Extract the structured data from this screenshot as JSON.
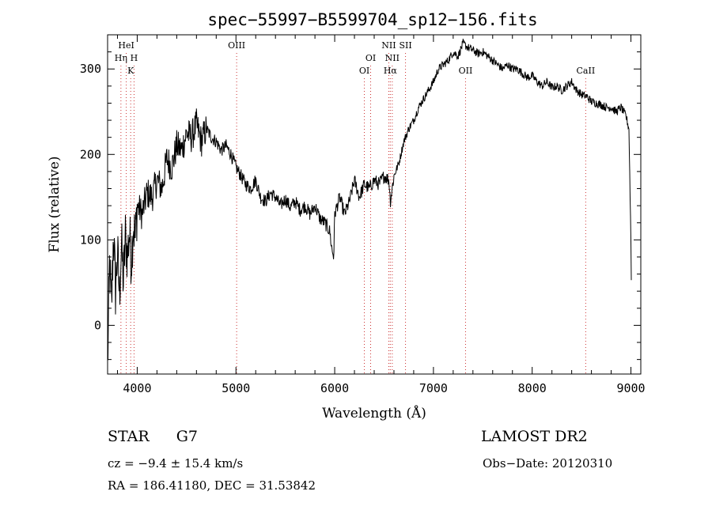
{
  "chart_data": {
    "type": "line",
    "title": "spec−55997−B5599704_sp12−156.fits",
    "xlabel": "Wavelength (Å)",
    "ylabel": "Flux (relative)",
    "xlim": [
      3700,
      9100
    ],
    "ylim": [
      -57,
      340
    ],
    "x_ticks": [
      4000,
      5000,
      6000,
      7000,
      8000,
      9000
    ],
    "y_ticks": [
      0,
      100,
      200,
      300
    ],
    "grid": false,
    "legend": "none",
    "line_color": "#000000",
    "marker_color": "#cc3333",
    "series": [
      {
        "x": [
          3700,
          3720,
          3740,
          3760,
          3780,
          3800,
          3820,
          3840,
          3860,
          3880,
          3900,
          3920,
          3940,
          3960,
          3980,
          4000,
          4050,
          4100,
          4150,
          4200,
          4250,
          4300,
          4350,
          4400,
          4450,
          4500,
          4550,
          4600,
          4650,
          4700,
          4750,
          4800,
          4850,
          4900,
          4950,
          5000,
          5050,
          5100,
          5150,
          5200,
          5250,
          5300,
          5350,
          5400,
          5450,
          5500,
          5550,
          5600,
          5650,
          5700,
          5750,
          5800,
          5850,
          5900,
          5950,
          5970,
          5990,
          6000,
          6050,
          6100,
          6150,
          6200,
          6250,
          6300,
          6350,
          6400,
          6450,
          6500,
          6550,
          6563,
          6600,
          6650,
          6700,
          6750,
          6800,
          6850,
          6900,
          6950,
          7000,
          7050,
          7100,
          7150,
          7200,
          7250,
          7300,
          7350,
          7400,
          7450,
          7500,
          7550,
          7600,
          7650,
          7700,
          7750,
          7800,
          7850,
          7900,
          7950,
          8000,
          8050,
          8100,
          8150,
          8200,
          8250,
          8300,
          8350,
          8400,
          8450,
          8500,
          8550,
          8600,
          8650,
          8700,
          8750,
          8800,
          8850,
          8900,
          8950,
          8980,
          9000,
          9005
        ],
        "y": [
          -50,
          70,
          20,
          110,
          40,
          85,
          35,
          95,
          50,
          105,
          80,
          110,
          75,
          120,
          100,
          140,
          130,
          155,
          150,
          170,
          160,
          195,
          185,
          210,
          205,
          225,
          220,
          235,
          215,
          230,
          220,
          215,
          205,
          210,
          200,
          185,
          175,
          165,
          160,
          170,
          150,
          145,
          155,
          150,
          140,
          148,
          138,
          145,
          135,
          140,
          130,
          140,
          125,
          120,
          110,
          90,
          80,
          130,
          150,
          130,
          145,
          170,
          150,
          165,
          160,
          170,
          165,
          175,
          170,
          145,
          175,
          190,
          215,
          230,
          240,
          255,
          265,
          275,
          285,
          300,
          305,
          310,
          320,
          315,
          330,
          325,
          322,
          318,
          320,
          315,
          310,
          305,
          300,
          305,
          300,
          300,
          295,
          290,
          292,
          285,
          280,
          285,
          278,
          280,
          275,
          280,
          285,
          275,
          270,
          268,
          262,
          260,
          258,
          255,
          255,
          250,
          255,
          245,
          230,
          100,
          40
        ]
      }
    ],
    "spectral_lines": [
      {
        "name": "HeI",
        "wavelength": 3889,
        "label_row": 1
      },
      {
        "name": "Hη",
        "wavelength": 3835,
        "label_row": 2
      },
      {
        "name": "H",
        "wavelength": 3968,
        "label_row": 2
      },
      {
        "name": "K",
        "wavelength": 3934,
        "label_row": 3
      },
      {
        "name": "OIII",
        "wavelength": 5007,
        "label_row": 1
      },
      {
        "name": "OI",
        "wavelength": 6300,
        "label_row": 3
      },
      {
        "name": "OI",
        "wavelength": 6364,
        "label_row": 2
      },
      {
        "name": "NII",
        "wavelength": 6548,
        "label_row": 1
      },
      {
        "name": "NII",
        "wavelength": 6583,
        "label_row": 2
      },
      {
        "name": "Hα",
        "wavelength": 6563,
        "label_row": 3
      },
      {
        "name": "SII",
        "wavelength": 6717,
        "label_row": 1
      },
      {
        "name": "OII",
        "wavelength": 7325,
        "label_row": 3
      },
      {
        "name": "CaII",
        "wavelength": 8542,
        "label_row": 3
      }
    ]
  },
  "info": {
    "class": "STAR",
    "subclass": "G7",
    "survey": "LAMOST DR2",
    "cz": "cz = −9.4 ± 15.4 km/s",
    "obs_date": "Obs−Date: 20120310",
    "coords": "RA = 186.41180, DEC =  31.53842"
  }
}
